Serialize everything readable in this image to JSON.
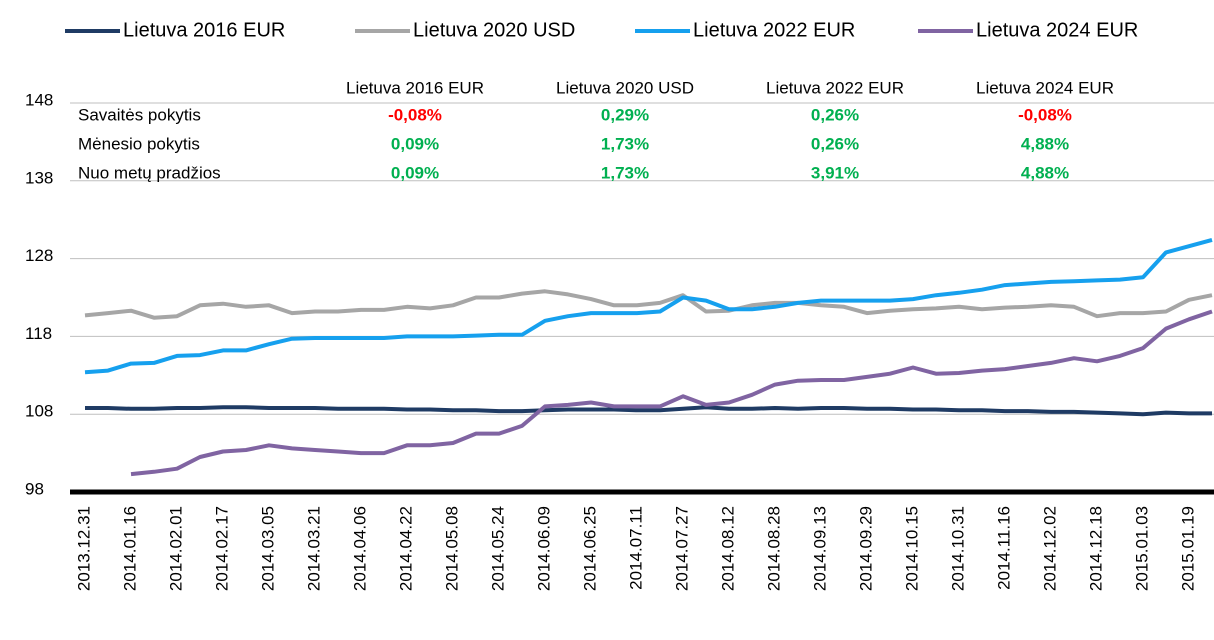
{
  "chart_data": {
    "type": "line",
    "categories": [
      "2013.12.31",
      null,
      "2014.01.16",
      null,
      "2014.02.01",
      null,
      "2014.02.17",
      null,
      "2014.03.05",
      null,
      "2014.03.21",
      null,
      "2014.04.06",
      null,
      "2014.04.22",
      null,
      "2014.05.08",
      null,
      "2014.05.24",
      null,
      "2014.06.09",
      null,
      "2014.06.25",
      null,
      "2014.07.11",
      null,
      "2014.07.27",
      null,
      "2014.08.12",
      null,
      "2014.08.28",
      null,
      "2014.09.13",
      null,
      "2014.09.29",
      null,
      "2014.10.15",
      null,
      "2014.10.31",
      null,
      "2014.11.16",
      null,
      "2014.12.02",
      null,
      "2014.12.18",
      null,
      "2015.01.03",
      null,
      "2015.01.19",
      null
    ],
    "ylim": [
      98,
      148
    ],
    "yticks": [
      98,
      108,
      118,
      128,
      138,
      148
    ],
    "grid": true,
    "series": [
      {
        "name": "Lietuva 2016 EUR",
        "color": "#1f3b64",
        "values": [
          108.8,
          108.8,
          108.7,
          108.7,
          108.8,
          108.8,
          108.9,
          108.9,
          108.8,
          108.8,
          108.8,
          108.7,
          108.7,
          108.7,
          108.6,
          108.6,
          108.5,
          108.5,
          108.4,
          108.4,
          108.5,
          108.6,
          108.6,
          108.6,
          108.5,
          108.5,
          108.7,
          108.9,
          108.7,
          108.7,
          108.8,
          108.7,
          108.8,
          108.8,
          108.7,
          108.7,
          108.6,
          108.6,
          108.5,
          108.5,
          108.4,
          108.4,
          108.3,
          108.3,
          108.2,
          108.1,
          108.0,
          108.2,
          108.1,
          108.1
        ]
      },
      {
        "name": "Lietuva 2020 USD",
        "color": "#a6a6a6",
        "values": [
          120.7,
          121,
          121.3,
          120.4,
          120.6,
          122,
          122.2,
          121.8,
          122,
          121,
          121.2,
          121.2,
          121.4,
          121.4,
          121.8,
          121.6,
          122,
          123,
          123,
          123.5,
          123.8,
          123.4,
          122.8,
          122,
          122,
          122.3,
          123.3,
          121.2,
          121.3,
          122,
          122.3,
          122.3,
          122,
          121.8,
          121,
          121.3,
          121.5,
          121.6,
          121.8,
          121.5,
          121.7,
          121.8,
          122,
          121.8,
          120.6,
          121,
          121,
          121.2,
          122.7,
          123.3
        ]
      },
      {
        "name": "Lietuva 2022 EUR",
        "color": "#16a0ee",
        "values": [
          113.4,
          113.6,
          114.5,
          114.6,
          115.5,
          115.6,
          116.2,
          116.2,
          117,
          117.7,
          117.8,
          117.8,
          117.8,
          117.8,
          118,
          118,
          118,
          118.1,
          118.2,
          118.2,
          120,
          120.6,
          121,
          121,
          121,
          121.2,
          123,
          122.6,
          121.5,
          121.5,
          121.8,
          122.3,
          122.6,
          122.6,
          122.6,
          122.6,
          122.8,
          123.3,
          123.6,
          124,
          124.6,
          124.8,
          125,
          125.1,
          125.2,
          125.3,
          125.6,
          128.8,
          129.6,
          130.4
        ]
      },
      {
        "name": "Lietuva 2024 EUR",
        "color": "#8064a2",
        "values": [
          null,
          null,
          100.3,
          100.6,
          101,
          102.5,
          103.2,
          103.4,
          104,
          103.6,
          103.4,
          103.2,
          103,
          103,
          104,
          104,
          104.3,
          105.5,
          105.5,
          106.5,
          109,
          109.2,
          109.5,
          109,
          109,
          109,
          110.3,
          109.2,
          109.5,
          110.5,
          111.8,
          112.3,
          112.4,
          112.4,
          112.8,
          113.2,
          114,
          113.2,
          113.3,
          113.6,
          113.8,
          114.2,
          114.6,
          115.2,
          114.8,
          115.5,
          116.5,
          119,
          120.2,
          121.2
        ]
      }
    ],
    "table": {
      "columns": [
        "Lietuva 2016 EUR",
        "Lietuva 2020 USD",
        "Lietuva 2022 EUR",
        "Lietuva 2024 EUR"
      ],
      "rows": [
        {
          "label": "Savaitės pokytis",
          "cells": [
            "-0,08%",
            "0,29%",
            "0,26%",
            "-0,08%"
          ]
        },
        {
          "label": "Mėnesio pokytis",
          "cells": [
            "0,09%",
            "1,73%",
            "0,26%",
            "4,88%"
          ]
        },
        {
          "label": "Nuo metų pradžios",
          "cells": [
            "0,09%",
            "1,73%",
            "3,91%",
            "4,88%"
          ]
        }
      ]
    }
  }
}
